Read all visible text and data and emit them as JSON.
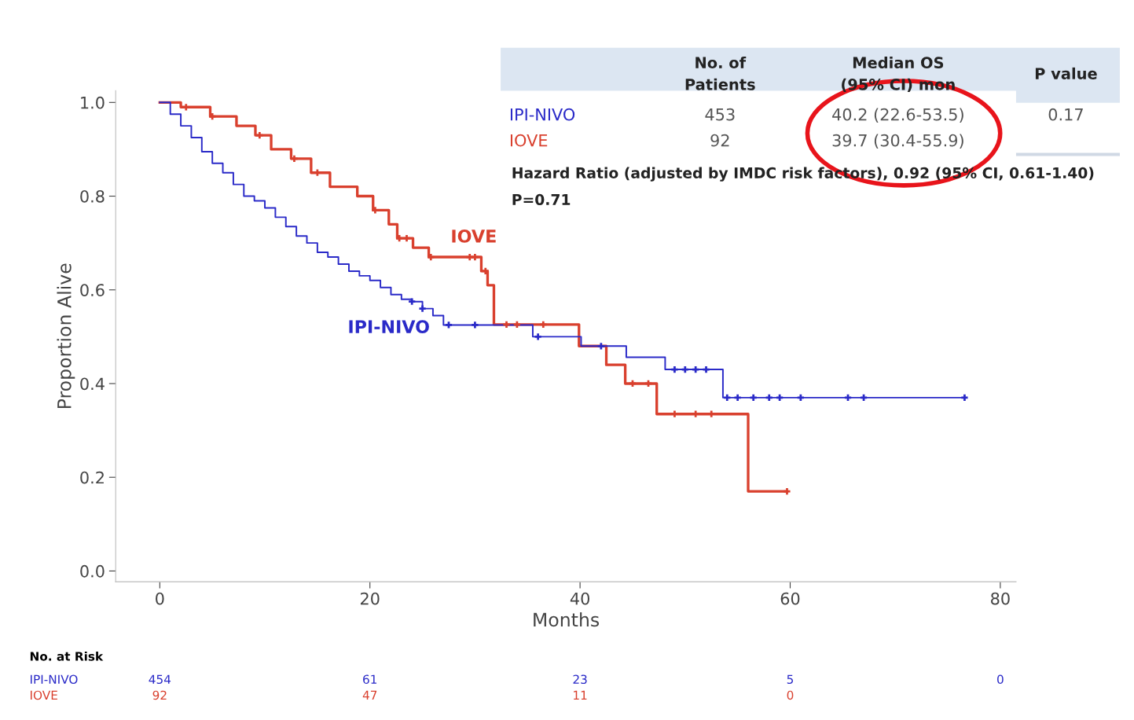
{
  "chart_data": {
    "type": "step",
    "xlabel": "Months",
    "ylabel": "Proportion Alive",
    "xlim": [
      -4.2,
      81.5
    ],
    "ylim": [
      -0.023,
      1.025
    ],
    "xticks": [
      0,
      20,
      40,
      60,
      80
    ],
    "yticks": [
      {
        "value": 0,
        "label": "0.0"
      },
      0.2,
      0.4,
      0.6,
      0.8,
      {
        "value": 1,
        "label": "1.0"
      }
    ],
    "grid": false,
    "legend": false,
    "series": [
      {
        "name": "IOVE",
        "color": "#d9402e",
        "x": [
          0,
          2,
          4.8,
          7.3,
          9.1,
          10.6,
          12.5,
          14.4,
          16.2,
          18.8,
          20.3,
          21.8,
          22.6,
          24.1,
          25.6,
          30.6,
          31.2,
          31.8,
          39.9,
          42.5,
          44.3,
          47.3,
          56,
          59.7
        ],
        "values": [
          1.0,
          0.99,
          0.97,
          0.95,
          0.93,
          0.9,
          0.88,
          0.85,
          0.82,
          0.8,
          0.77,
          0.74,
          0.71,
          0.69,
          0.67,
          0.64,
          0.61,
          0.526,
          0.48,
          0.44,
          0.4,
          0.335,
          0.17,
          0.17
        ]
      },
      {
        "name": "IPI-NIVO",
        "color": "#2a2ac8",
        "x": [
          0,
          1,
          2,
          3,
          4,
          5,
          6,
          7,
          8,
          9,
          10,
          11,
          12,
          13,
          14,
          15,
          16,
          17,
          18,
          19,
          20,
          21,
          22,
          23,
          24,
          25,
          26,
          27,
          35.5,
          40.1,
          44.4,
          48.1,
          53.6,
          76.6
        ],
        "values": [
          1.0,
          0.975,
          0.95,
          0.925,
          0.895,
          0.87,
          0.85,
          0.825,
          0.8,
          0.79,
          0.775,
          0.755,
          0.735,
          0.715,
          0.7,
          0.68,
          0.67,
          0.655,
          0.64,
          0.63,
          0.62,
          0.605,
          0.59,
          0.58,
          0.575,
          0.56,
          0.545,
          0.525,
          0.5,
          0.48,
          0.456,
          0.43,
          0.37,
          0.37
        ]
      },
      {
        "type": "scatter",
        "marker": "cross",
        "color": "#d9402e",
        "x": [
          2.5,
          5,
          9.5,
          12.8,
          15,
          20.5,
          22.8,
          23.5,
          25.8,
          29.5,
          30,
          31,
          33,
          34,
          36.5,
          45,
          46.5,
          49,
          51,
          52.5,
          59.7
        ],
        "values": [
          0.99,
          0.97,
          0.93,
          0.88,
          0.85,
          0.77,
          0.71,
          0.71,
          0.67,
          0.67,
          0.67,
          0.64,
          0.526,
          0.526,
          0.526,
          0.4,
          0.4,
          0.335,
          0.335,
          0.335,
          0.17
        ]
      },
      {
        "type": "scatter",
        "marker": "cross",
        "color": "#2a2ac8",
        "x": [
          24,
          25,
          27.5,
          30,
          36,
          42,
          49,
          50,
          51,
          52,
          54,
          55,
          56.5,
          58,
          59,
          61,
          65.5,
          67,
          76.6
        ],
        "values": [
          0.575,
          0.56,
          0.525,
          0.525,
          0.5,
          0.48,
          0.43,
          0.43,
          0.43,
          0.43,
          0.37,
          0.37,
          0.37,
          0.37,
          0.37,
          0.37,
          0.37,
          0.37,
          0.37
        ]
      }
    ],
    "annotations": [
      "No. of\nPatients",
      "Median OS\n(95% CI) mon",
      "P value",
      "IPI-NIVO",
      "453",
      "40.2 (22.6-53.5)",
      "0.17",
      "IOVE",
      "92",
      "39.7 (30.4-55.9)",
      "Hazard Ratio (adjusted by IMDC risk factors), 0.92 (95% CI, 0.61-1.40)",
      "P=0.71",
      "No. at Risk",
      "IPI-NIVO",
      "454",
      "61",
      "23",
      "5",
      "0",
      "IOVE",
      "92",
      "47",
      "11",
      "0"
    ]
  }
}
